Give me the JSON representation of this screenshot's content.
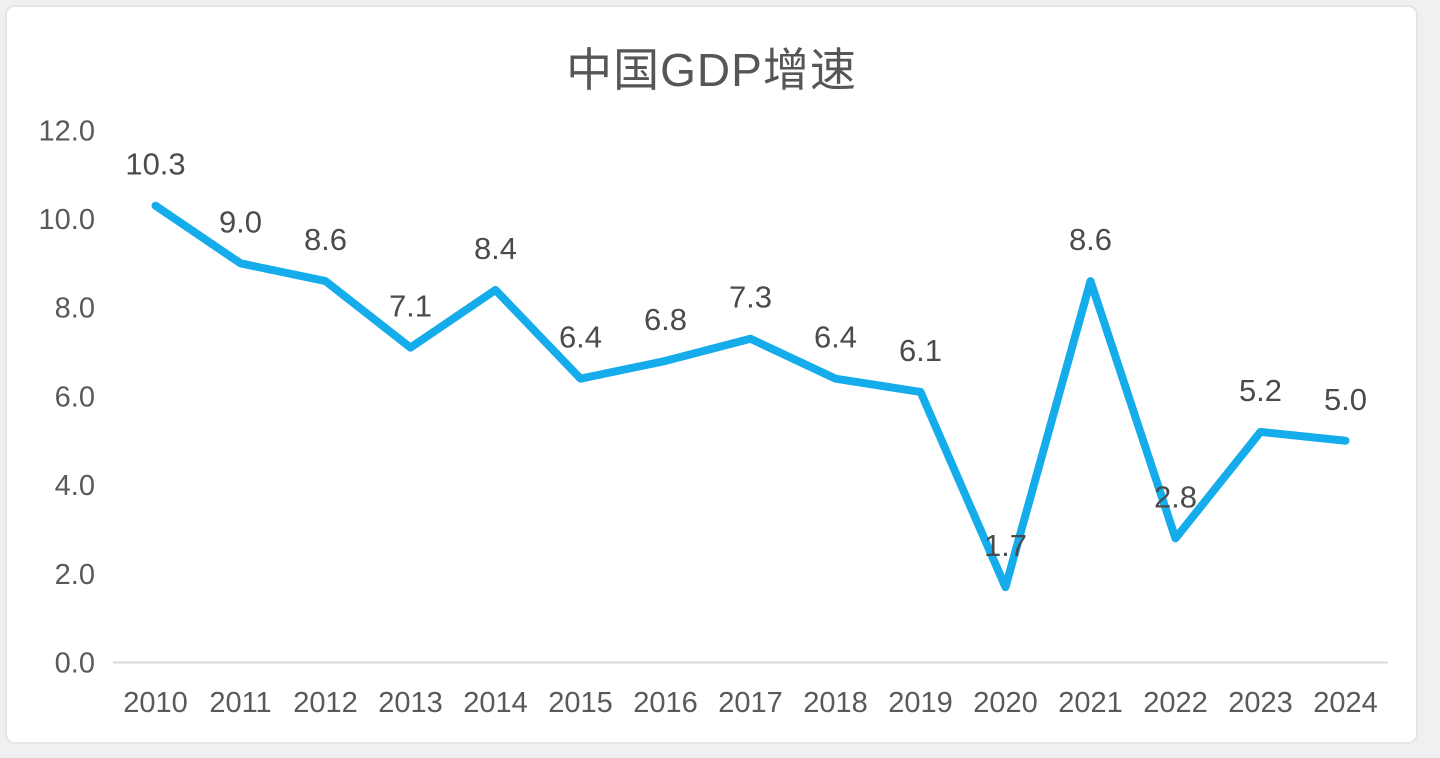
{
  "window": {
    "background": "#eef0f1",
    "card_background": "#ffffff",
    "card_border_color": "#e4e5e7"
  },
  "chart_data": {
    "type": "line",
    "title": "中国GDP增速",
    "title_color": "#565658",
    "categories": [
      "2010",
      "2011",
      "2012",
      "2013",
      "2014",
      "2015",
      "2016",
      "2017",
      "2018",
      "2019",
      "2020",
      "2021",
      "2022",
      "2023",
      "2024"
    ],
    "values": [
      10.3,
      9.0,
      8.6,
      7.1,
      8.4,
      6.4,
      6.8,
      7.3,
      6.4,
      6.1,
      1.7,
      8.6,
      2.8,
      5.2,
      5.0
    ],
    "value_labels": [
      "10.3",
      "9.0",
      "8.6",
      "7.1",
      "8.4",
      "6.4",
      "6.8",
      "7.3",
      "6.4",
      "6.1",
      "1.7",
      "8.6",
      "2.8",
      "5.2",
      "5.0"
    ],
    "xlabel": "",
    "ylabel": "",
    "ylim": [
      0,
      12
    ],
    "yticks": [
      0,
      2,
      4,
      6,
      8,
      10,
      12
    ],
    "ytick_labels": [
      "0.0",
      "2.0",
      "4.0",
      "6.0",
      "8.0",
      "10.0",
      "12.0"
    ],
    "grid": "off",
    "legend": "none",
    "data_labels": "on",
    "line_color": "#14ACEA",
    "line_width": 8,
    "axis_text_color": "#59595b",
    "data_label_color": "#4b4b4d",
    "axis_line_color": "#d8d8d8"
  }
}
